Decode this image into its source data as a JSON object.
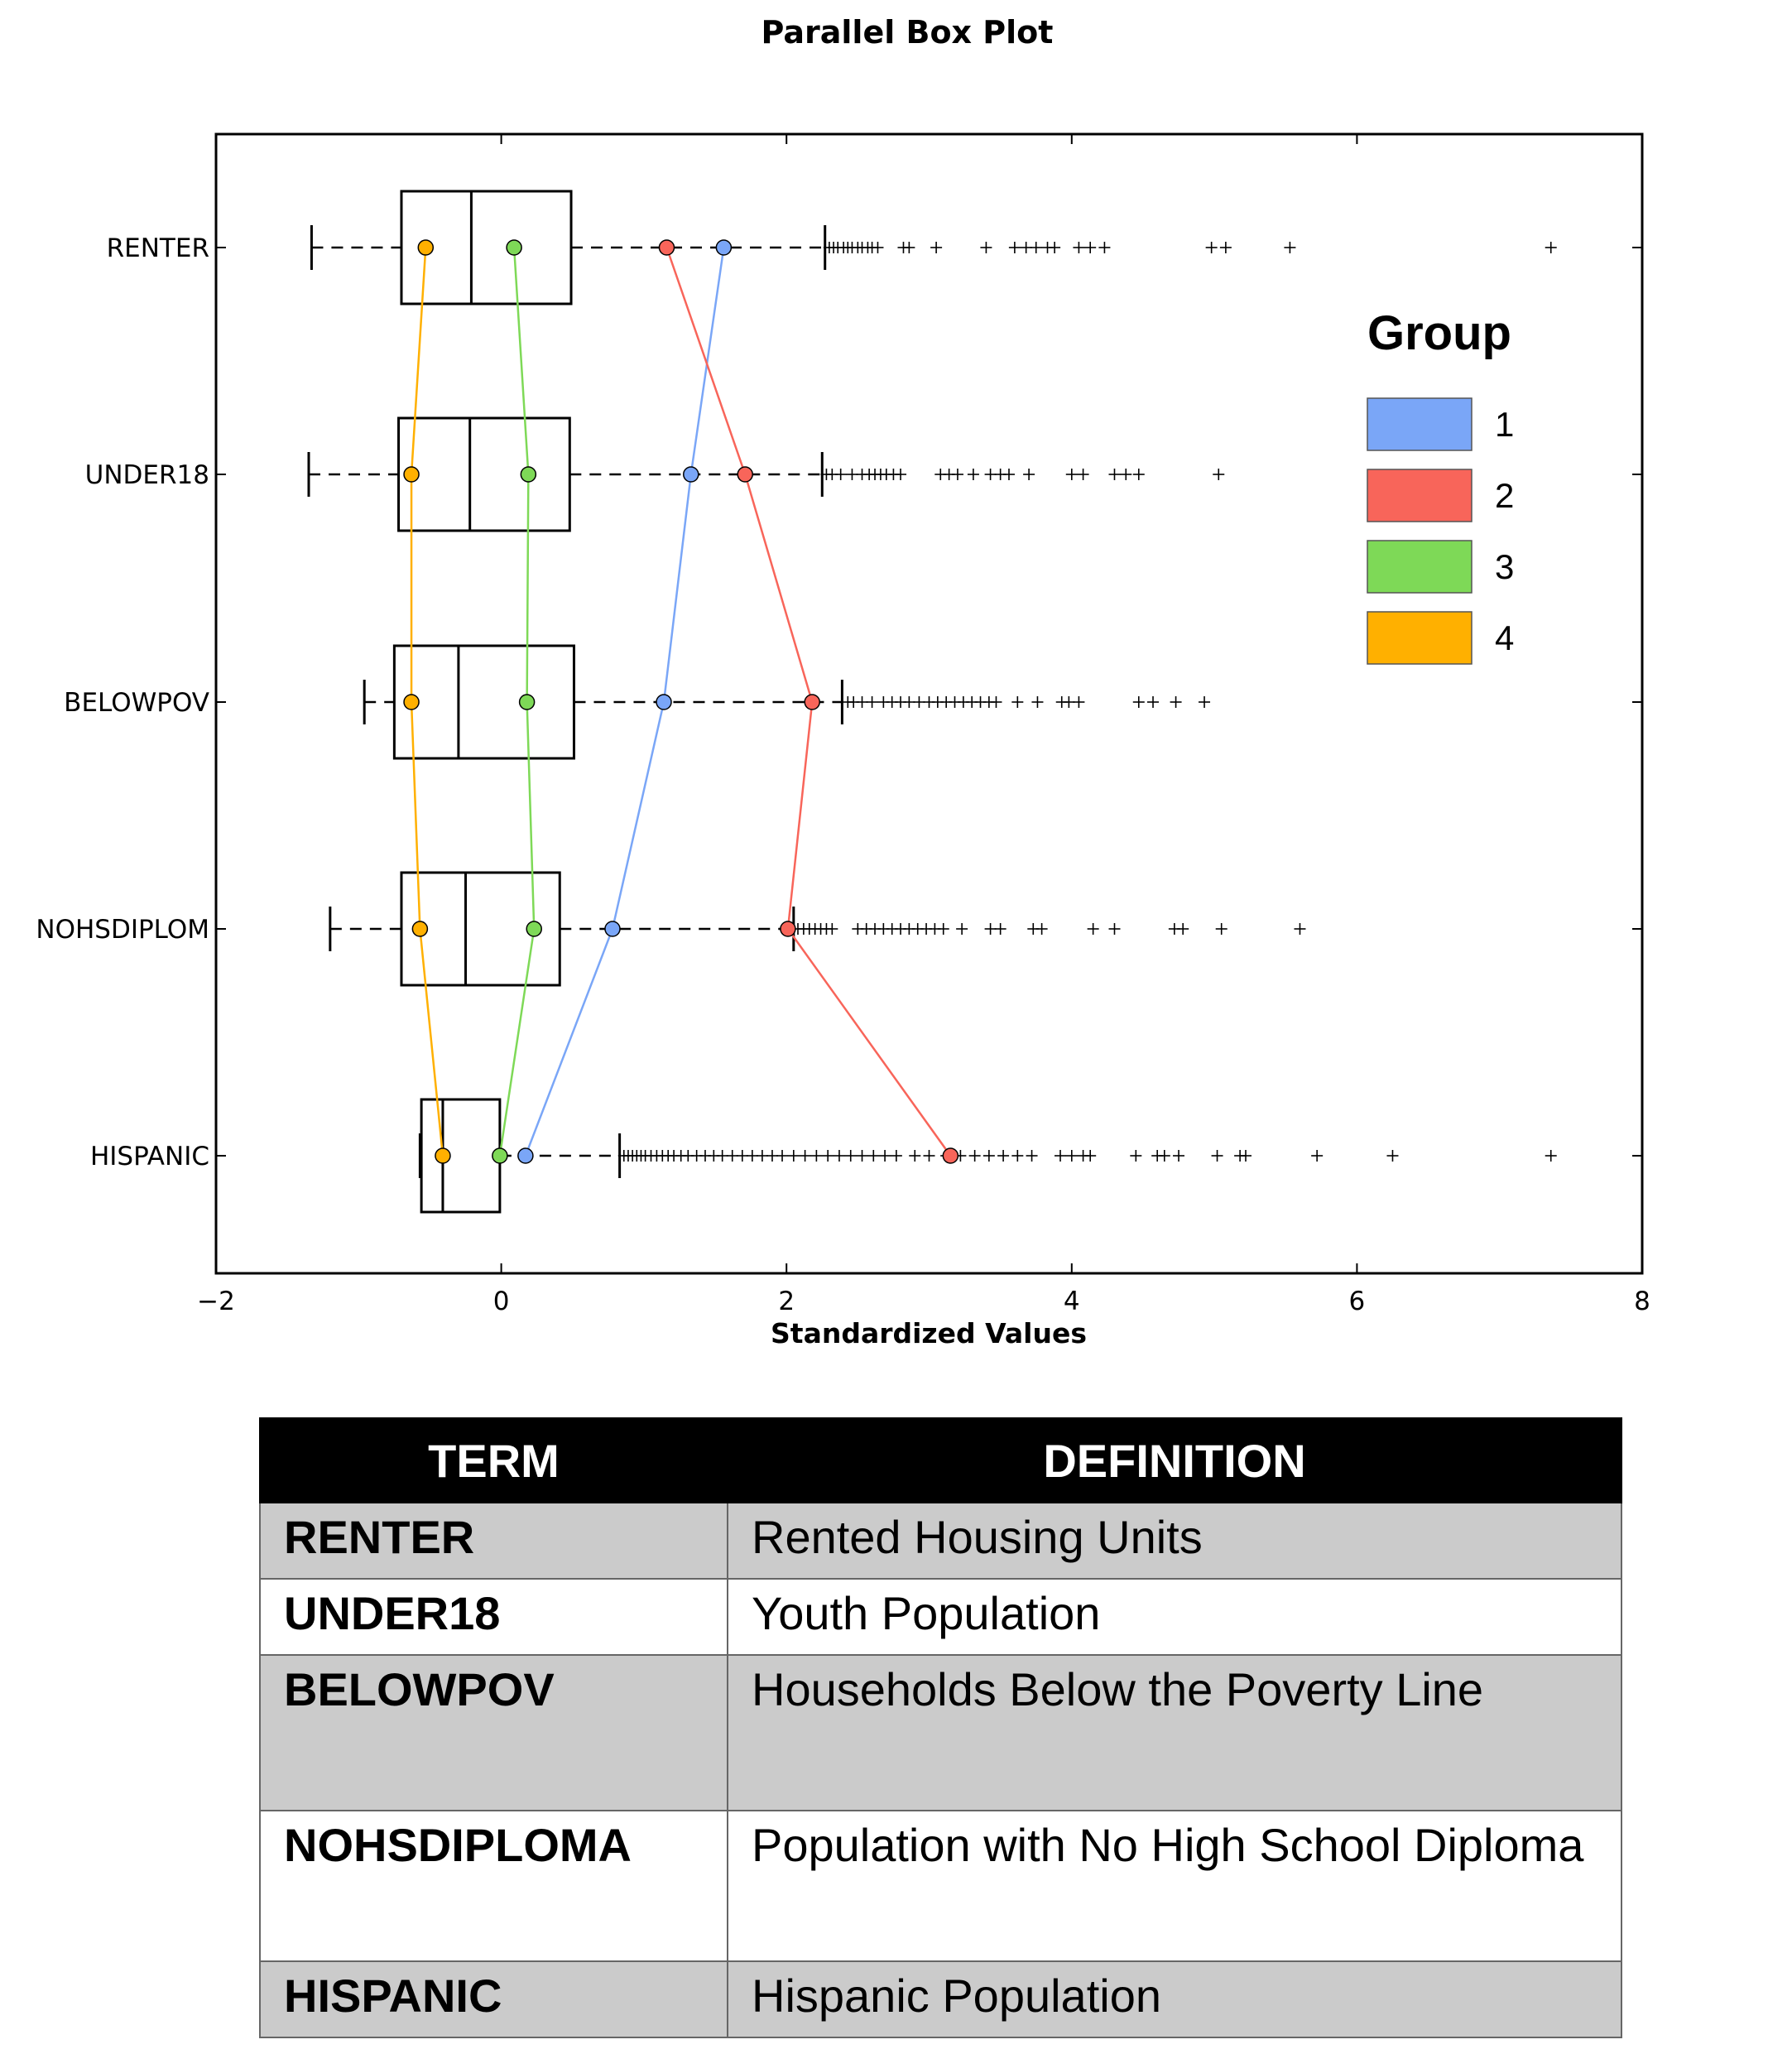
{
  "chart_data": {
    "type": "box",
    "title": "Parallel Box Plot",
    "xlabel": "Standardized Values",
    "ylabel": "",
    "xlim": [
      -2,
      8
    ],
    "xticks": [
      -2,
      0,
      2,
      4,
      6,
      8
    ],
    "xtick_labels": [
      "−2",
      "0",
      "2",
      "4",
      "6",
      "8"
    ],
    "grid": false,
    "categories": [
      "RENTER",
      "UNDER18",
      "BELOWPOV",
      "NOHSDIPLOM",
      "HISPANIC"
    ],
    "boxes": [
      {
        "label": "RENTER",
        "whisker_low": -1.33,
        "q1": -0.7,
        "median": -0.21,
        "q3": 0.49,
        "whisker_high": 2.27,
        "outliers": [
          2.3,
          2.33,
          2.36,
          2.4,
          2.43,
          2.46,
          2.5,
          2.53,
          2.57,
          2.6,
          2.64,
          2.82,
          2.86,
          3.05,
          3.4,
          3.6,
          3.68,
          3.75,
          3.83,
          3.88,
          4.05,
          4.13,
          4.23,
          4.98,
          5.08,
          5.53,
          7.36
        ]
      },
      {
        "label": "UNDER18",
        "whisker_low": -1.35,
        "q1": -0.72,
        "median": -0.22,
        "q3": 0.48,
        "whisker_high": 2.25,
        "outliers": [
          2.28,
          2.32,
          2.38,
          2.46,
          2.53,
          2.58,
          2.62,
          2.66,
          2.7,
          2.75,
          2.8,
          3.08,
          3.14,
          3.2,
          3.31,
          3.43,
          3.5,
          3.56,
          3.7,
          4.0,
          4.08,
          4.3,
          4.38,
          4.47,
          5.03
        ]
      },
      {
        "label": "BELOWPOV",
        "whisker_low": -0.96,
        "q1": -0.75,
        "median": -0.3,
        "q3": 0.51,
        "whisker_high": 2.39,
        "outliers": [
          2.43,
          2.47,
          2.53,
          2.6,
          2.68,
          2.74,
          2.8,
          2.86,
          2.93,
          3.0,
          3.06,
          3.12,
          3.18,
          3.24,
          3.3,
          3.36,
          3.42,
          3.47,
          3.62,
          3.76,
          3.93,
          3.98,
          4.05,
          4.47,
          4.57,
          4.73,
          4.93
        ]
      },
      {
        "label": "NOHSDIPLOM",
        "whisker_low": -1.2,
        "q1": -0.7,
        "median": -0.25,
        "q3": 0.41,
        "whisker_high": 2.05,
        "outliers": [
          2.08,
          2.12,
          2.16,
          2.2,
          2.24,
          2.28,
          2.32,
          2.5,
          2.56,
          2.62,
          2.68,
          2.74,
          2.8,
          2.86,
          2.92,
          2.98,
          3.04,
          3.1,
          3.23,
          3.43,
          3.5,
          3.73,
          3.79,
          4.15,
          4.3,
          4.72,
          4.78,
          5.05,
          5.6
        ]
      },
      {
        "label": "HISPANIC",
        "whisker_low": -0.57,
        "q1": -0.56,
        "median": -0.41,
        "q3": -0.01,
        "whisker_high": 0.83,
        "outliers": [
          0.86,
          0.89,
          0.92,
          0.95,
          0.98,
          1.01,
          1.05,
          1.09,
          1.13,
          1.17,
          1.21,
          1.26,
          1.31,
          1.37,
          1.43,
          1.49,
          1.55,
          1.62,
          1.69,
          1.76,
          1.83,
          1.9,
          1.97,
          2.05,
          2.13,
          2.21,
          2.29,
          2.37,
          2.45,
          2.53,
          2.61,
          2.69,
          2.77,
          2.9,
          3.0,
          3.12,
          3.22,
          3.32,
          3.42,
          3.52,
          3.62,
          3.72,
          3.92,
          4.0,
          4.08,
          4.13,
          4.45,
          4.6,
          4.65,
          4.75,
          5.02,
          5.18,
          5.22,
          5.72,
          6.25,
          7.36
        ]
      }
    ],
    "series": [
      {
        "name": "1",
        "color": "#7aa6f7",
        "values": [
          1.56,
          1.33,
          1.14,
          0.78,
          0.17
        ]
      },
      {
        "name": "2",
        "color": "#f8655a",
        "values": [
          1.16,
          1.71,
          2.18,
          2.01,
          3.15
        ]
      },
      {
        "name": "3",
        "color": "#7ed957",
        "values": [
          0.09,
          0.19,
          0.18,
          0.23,
          -0.01
        ]
      },
      {
        "name": "4",
        "color": "#ffb000",
        "values": [
          -0.53,
          -0.63,
          -0.63,
          -0.57,
          -0.41
        ]
      }
    ],
    "legend": {
      "title": "Group",
      "position": "right",
      "entries": [
        "1",
        "2",
        "3",
        "4"
      ]
    }
  },
  "definitions": {
    "headers": [
      "TERM",
      "DEFINITION"
    ],
    "rows": [
      {
        "term": "RENTER",
        "definition": "Rented Housing Units"
      },
      {
        "term": "UNDER18",
        "definition": "Youth Population"
      },
      {
        "term": "BELOWPOV",
        "definition": "Households Below the Poverty Line"
      },
      {
        "term": "NOHSDIPLOMA",
        "definition": "Population with No High School Diploma"
      },
      {
        "term": "HISPANIC",
        "definition": "Hispanic Population"
      }
    ]
  }
}
